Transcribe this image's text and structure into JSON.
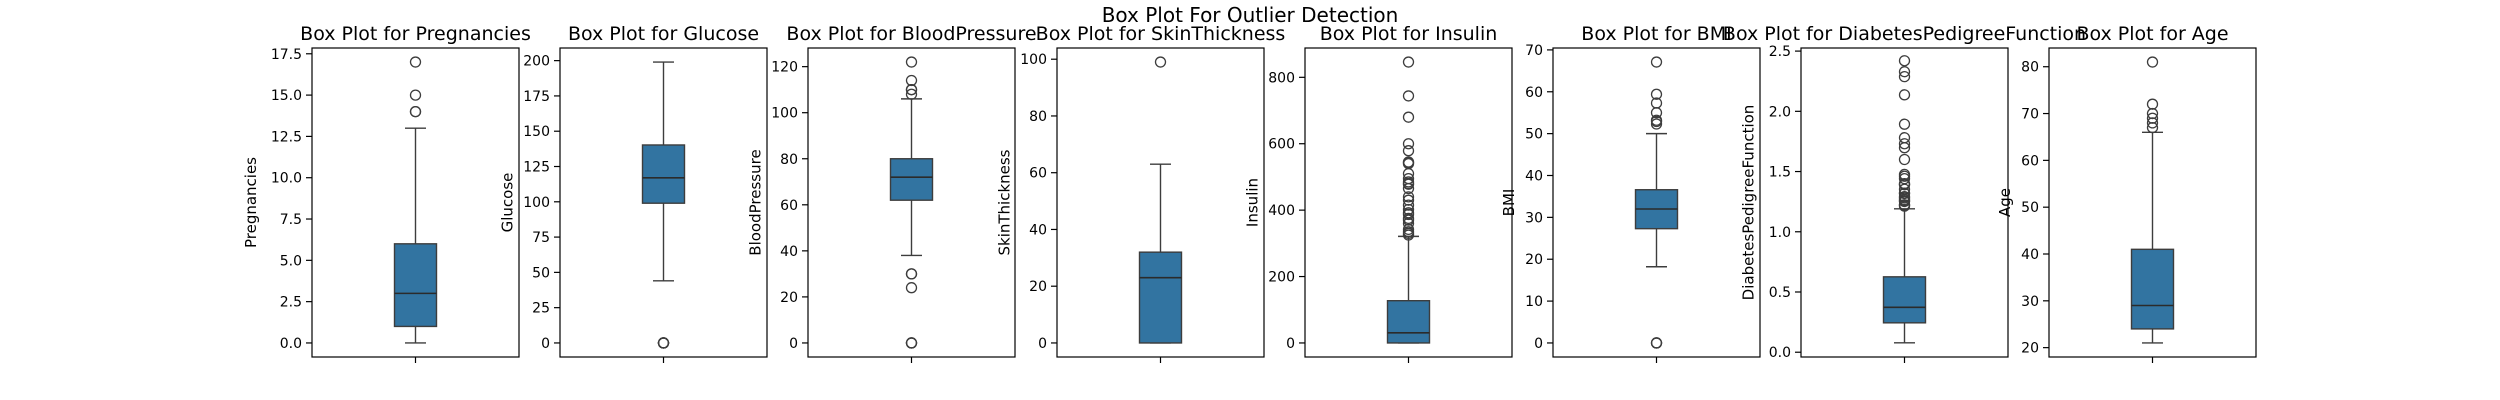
{
  "figure": {
    "suptitle": "Box Plot For Outlier Detection"
  },
  "style": {
    "box_color": "#3274a1",
    "median_color": "#2b2b2b",
    "whisker_color": "#3d3d3d",
    "flier_edge": "#3d3d3d"
  },
  "chart_data": [
    {
      "type": "box",
      "title": "Box Plot for Pregnancies",
      "ylabel": "Pregnancies",
      "ylim": [
        -0.85,
        17.85
      ],
      "ticks": [
        0,
        2.5,
        5,
        7.5,
        10,
        12.5,
        15,
        17.5
      ],
      "tick_labels": [
        "0.0",
        "2.5",
        "5.0",
        "7.5",
        "10.0",
        "12.5",
        "15.0",
        "17.5"
      ],
      "stats": {
        "whislo": 0,
        "q1": 1,
        "med": 3,
        "q3": 6,
        "whishi": 13
      },
      "fliers": [
        14,
        14,
        15,
        17
      ]
    },
    {
      "type": "box",
      "title": "Box Plot for Glucose",
      "ylabel": "Glucose",
      "ylim": [
        -9.95,
        208.95
      ],
      "ticks": [
        0,
        25,
        50,
        75,
        100,
        125,
        150,
        175,
        200
      ],
      "tick_labels": [
        "0",
        "25",
        "50",
        "75",
        "100",
        "125",
        "150",
        "175",
        "200"
      ],
      "stats": {
        "whislo": 44,
        "q1": 99,
        "med": 117,
        "q3": 140.25,
        "whishi": 199
      },
      "fliers": [
        0,
        0,
        0,
        0,
        0
      ]
    },
    {
      "type": "box",
      "title": "Box Plot for BloodPressure",
      "ylabel": "BloodPressure",
      "ylim": [
        -6.1,
        128.1
      ],
      "ticks": [
        0,
        20,
        40,
        60,
        80,
        100,
        120
      ],
      "tick_labels": [
        "0",
        "20",
        "40",
        "60",
        "80",
        "100",
        "120"
      ],
      "stats": {
        "whislo": 38,
        "q1": 62,
        "med": 72,
        "q3": 80,
        "whishi": 106
      },
      "fliers": [
        0,
        0,
        0,
        24,
        30,
        30,
        108,
        110,
        110,
        114,
        122
      ]
    },
    {
      "type": "box",
      "title": "Box Plot for SkinThickness",
      "ylabel": "SkinThickness",
      "ylim": [
        -4.95,
        103.95
      ],
      "ticks": [
        0,
        20,
        40,
        60,
        80,
        100
      ],
      "tick_labels": [
        "0",
        "20",
        "40",
        "60",
        "80",
        "100"
      ],
      "stats": {
        "whislo": 0,
        "q1": 0,
        "med": 23,
        "q3": 32,
        "whishi": 63
      },
      "fliers": [
        99
      ]
    },
    {
      "type": "box",
      "title": "Box Plot for Insulin",
      "ylabel": "Insulin",
      "ylim": [
        -42.3,
        888.3
      ],
      "ticks": [
        0,
        200,
        400,
        600,
        800
      ],
      "tick_labels": [
        "0",
        "200",
        "400",
        "600",
        "800"
      ],
      "stats": {
        "whislo": 0,
        "q1": 0,
        "med": 30.5,
        "q3": 127.25,
        "whishi": 321
      },
      "fliers": [
        325,
        330,
        335,
        342,
        360,
        370,
        375,
        387,
        392,
        402,
        415,
        430,
        440,
        465,
        478,
        480,
        485,
        495,
        510,
        540,
        543,
        545,
        579,
        600,
        680,
        744,
        846
      ]
    },
    {
      "type": "box",
      "title": "Box Plot for BMI",
      "ylabel": "BMI",
      "ylim": [
        -3.355,
        70.455
      ],
      "ticks": [
        0,
        10,
        20,
        30,
        40,
        50,
        60,
        70
      ],
      "tick_labels": [
        "0",
        "10",
        "20",
        "30",
        "40",
        "50",
        "60",
        "70"
      ],
      "stats": {
        "whislo": 18.2,
        "q1": 27.3,
        "med": 32,
        "q3": 36.6,
        "whishi": 50
      },
      "fliers": [
        0,
        0,
        0,
        52.3,
        52.9,
        53.2,
        55,
        57.3,
        59.4,
        67.1
      ]
    },
    {
      "type": "box",
      "title": "Box Plot for DiabetesPedigreeFunction",
      "ylabel": "DiabetesPedigreeFunction",
      "ylim": [
        -0.0397,
        2.5257
      ],
      "ticks": [
        0,
        0.5,
        1,
        1.5,
        2,
        2.5
      ],
      "tick_labels": [
        "0.0",
        "0.5",
        "1.0",
        "1.5",
        "2.0",
        "2.5"
      ],
      "stats": {
        "whislo": 0.078,
        "q1": 0.244,
        "med": 0.3725,
        "q3": 0.626,
        "whishi": 1.191
      },
      "fliers": [
        1.213,
        1.222,
        1.224,
        1.251,
        1.258,
        1.268,
        1.282,
        1.292,
        1.318,
        1.321,
        1.353,
        1.39,
        1.394,
        1.4,
        1.441,
        1.461,
        1.476,
        1.6,
        1.698,
        1.731,
        1.781,
        1.893,
        2.137,
        2.288,
        2.329,
        2.42
      ]
    },
    {
      "type": "box",
      "title": "Box Plot for Age",
      "ylabel": "Age",
      "ylim": [
        18,
        84
      ],
      "ticks": [
        20,
        30,
        40,
        50,
        60,
        70,
        80
      ],
      "tick_labels": [
        "20",
        "30",
        "40",
        "50",
        "60",
        "70",
        "80"
      ],
      "stats": {
        "whislo": 21,
        "q1": 24,
        "med": 29,
        "q3": 41,
        "whishi": 66
      },
      "fliers": [
        67,
        68,
        69,
        70,
        72,
        81
      ]
    }
  ]
}
